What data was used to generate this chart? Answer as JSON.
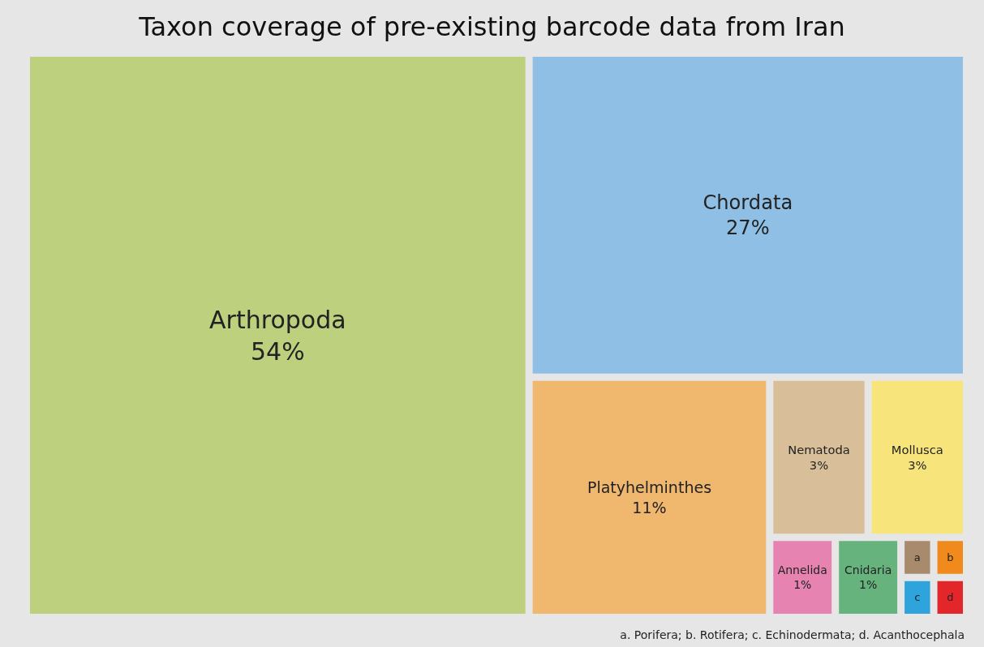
{
  "chart_data": {
    "type": "other",
    "title": "Taxon coverage of pre-existing barcode data from Iran",
    "categories": [
      "Arthropoda",
      "Chordata",
      "Platyhelminthes",
      "Nematoda",
      "Mollusca",
      "Annelida",
      "Cnidaria",
      "a",
      "b",
      "c",
      "d"
    ],
    "values": [
      54,
      27,
      11,
      3,
      3,
      1,
      1,
      null,
      null,
      null,
      null
    ],
    "value_labels": [
      "54%",
      "27%",
      "11%",
      "3%",
      "3%",
      "1%",
      "1%",
      null,
      null,
      null,
      null
    ],
    "colors": [
      "#bcd07e",
      "#8fbfe4",
      "#f0b76e",
      "#d8bf9a",
      "#f7e57c",
      "#e683b0",
      "#67b37e",
      "#a88b6d",
      "#f08a1c",
      "#2ea3dc",
      "#e3262a"
    ],
    "annotations": [
      "a. Porifera; b. Rotifera; c. Echinodermata; d. Acanthocephala"
    ]
  }
}
